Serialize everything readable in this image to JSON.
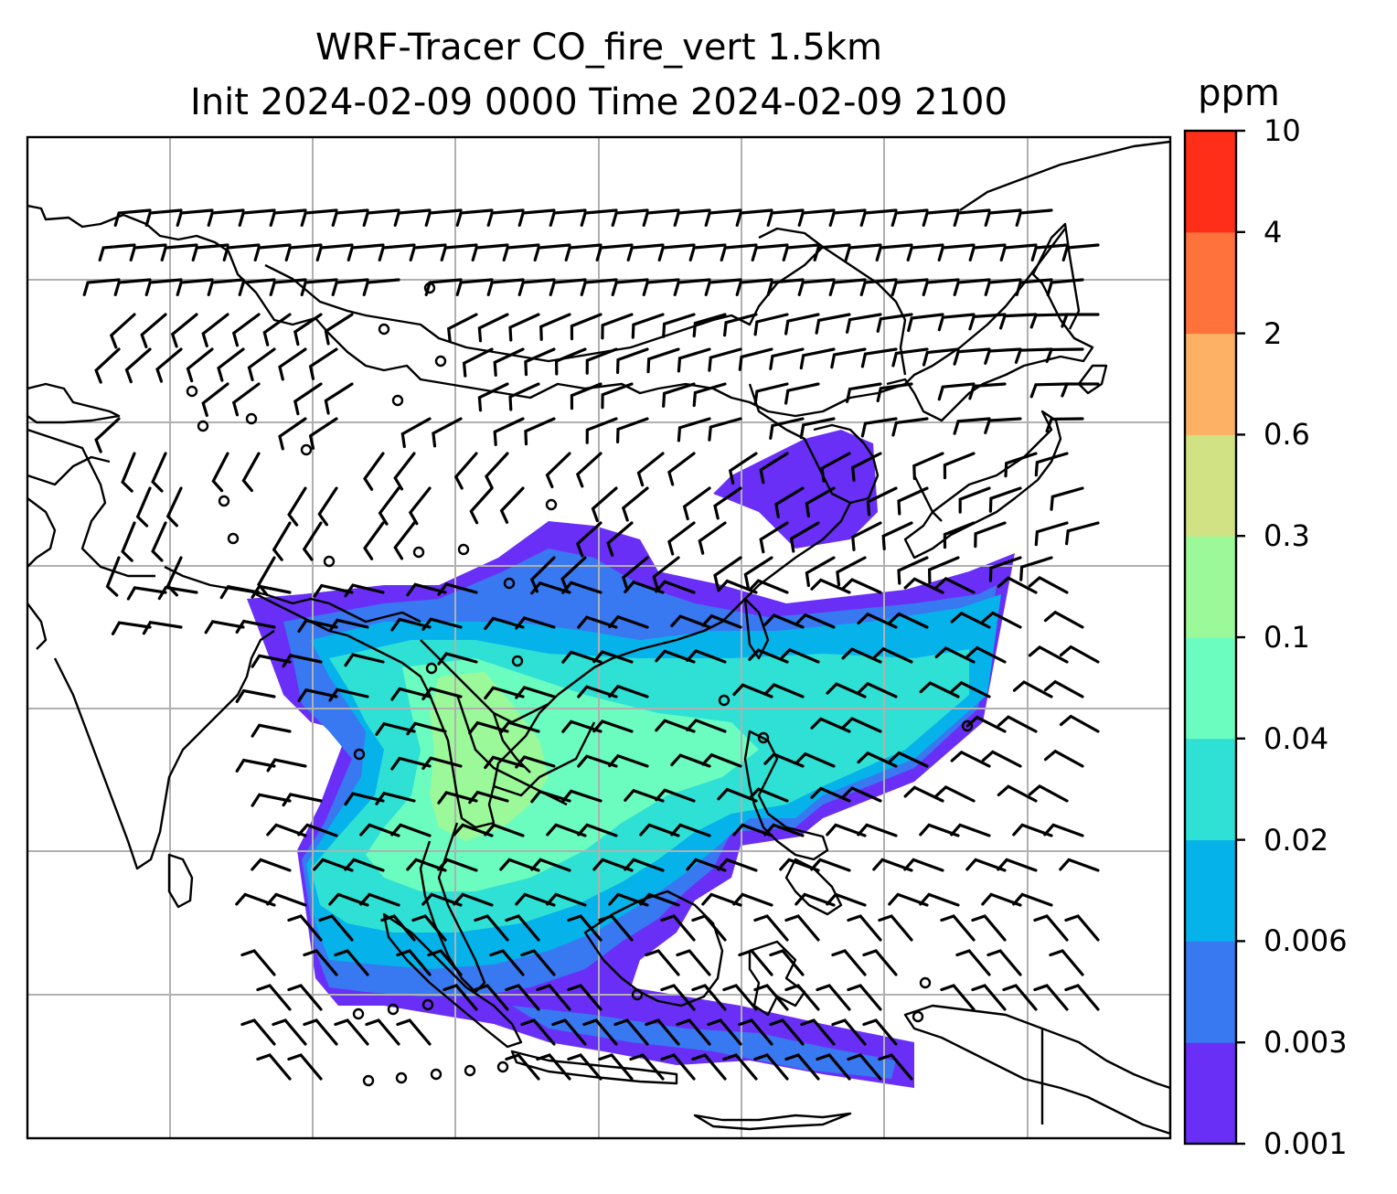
{
  "title": {
    "line1": "WRF-Tracer CO_fire_vert 1.5km",
    "line2": "Init 2024-02-09 0000 Time 2024-02-09 2100"
  },
  "colorbar": {
    "unit": "ppm",
    "levels": [
      "0.001",
      "0.003",
      "0.006",
      "0.02",
      "0.04",
      "0.1",
      "0.3",
      "0.6",
      "2",
      "4",
      "10"
    ],
    "colors": [
      "#6a2ff7",
      "#3878f0",
      "#06b2ea",
      "#2fe0d5",
      "#6bfcc0",
      "#9cf99a",
      "#d1e285",
      "#fdb164",
      "#ff723c",
      "#ff2e18"
    ]
  },
  "map": {
    "gridlines": true,
    "features": [
      "coastlines",
      "country-borders",
      "wind-barbs",
      "tracer-concentration-fill"
    ]
  }
}
